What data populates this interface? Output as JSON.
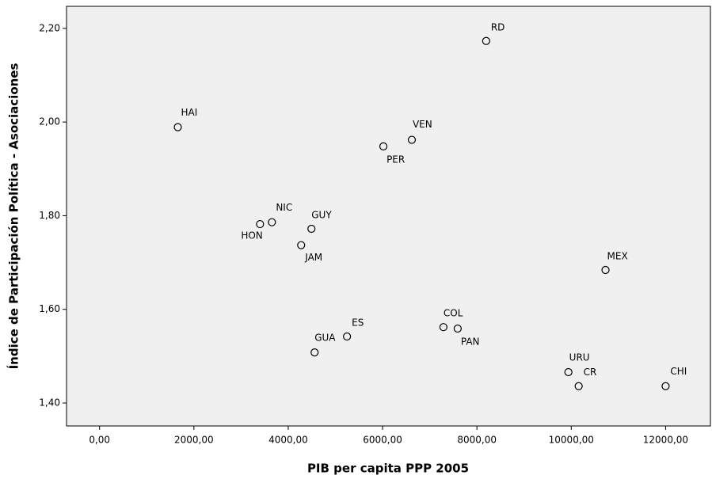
{
  "chart_data": {
    "type": "scatter",
    "xlabel": "PIB per capita PPP 2005",
    "ylabel": "Índice de Participación Política - Asociaciones",
    "point_labels": [
      "RD",
      "HAI",
      "VEN",
      "PER",
      "NIC",
      "HON",
      "GUY",
      "JAM",
      "MEX",
      "COL",
      "PAN",
      "ES",
      "GUA",
      "URU",
      "CR",
      "CHI"
    ],
    "x": [
      8196,
      1659,
      6620,
      6017,
      3654,
      3402,
      4492,
      4274,
      10726,
      7290,
      7592,
      5246,
      4559,
      9939,
      10157,
      12000
    ],
    "values": [
      2.173,
      1.989,
      1.962,
      1.948,
      1.786,
      1.782,
      1.772,
      1.737,
      1.684,
      1.562,
      1.559,
      1.542,
      1.508,
      1.466,
      1.436,
      1.436
    ],
    "xlim": [
      -700,
      12950
    ],
    "ylim": [
      1.351,
      2.247
    ],
    "xticks": [
      {
        "value": 0,
        "label": "0,00"
      },
      {
        "value": 2000,
        "label": "2000,00"
      },
      {
        "value": 4000,
        "label": "4000,00"
      },
      {
        "value": 6000,
        "label": "6000,00"
      },
      {
        "value": 8000,
        "label": "8000,00"
      },
      {
        "value": 10000,
        "label": "10000,00"
      },
      {
        "value": 12000,
        "label": "12000,00"
      }
    ],
    "yticks": [
      {
        "value": 1.4,
        "label": "1,40"
      },
      {
        "value": 1.6,
        "label": "1,60"
      },
      {
        "value": 1.8,
        "label": "1,80"
      },
      {
        "value": 2.0,
        "label": "2,00"
      },
      {
        "value": 2.2,
        "label": "2,20"
      }
    ],
    "color": "#000000",
    "background": "#f0f0f0"
  }
}
